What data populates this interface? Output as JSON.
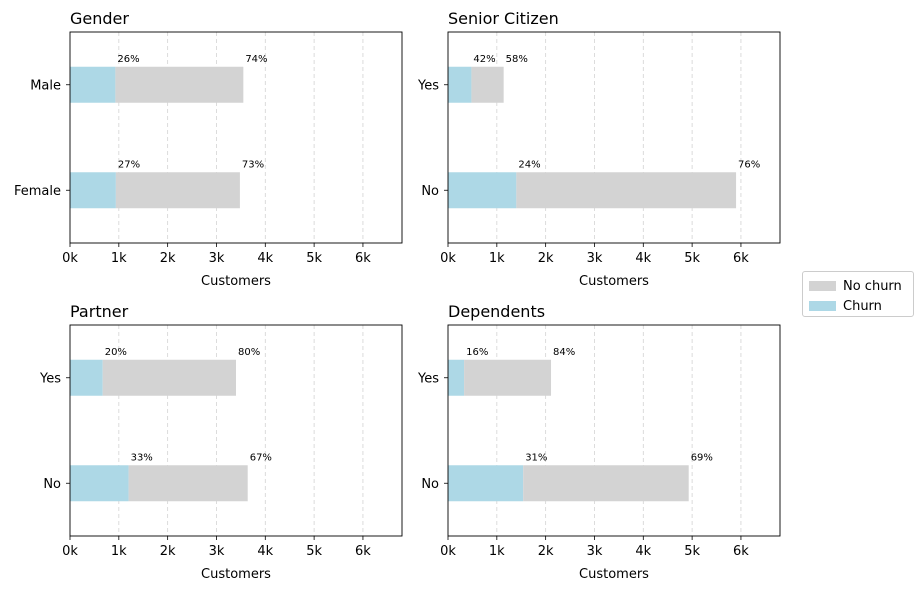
{
  "chart_data": {
    "type": "bar",
    "orientation": "horizontal",
    "stacked": true,
    "legend": {
      "placement": "right",
      "entries": [
        {
          "name": "No churn",
          "color": "#d3d3d3"
        },
        {
          "name": "Churn",
          "color": "#add8e6"
        }
      ]
    },
    "x_ticks": [
      "0k",
      "1k",
      "2k",
      "3k",
      "4k",
      "5k",
      "6k"
    ],
    "x_tick_values": [
      0,
      1000,
      2000,
      3000,
      4000,
      5000,
      6000
    ],
    "xlim": [
      0,
      6800
    ],
    "grid": {
      "x": true,
      "style": "dashed"
    },
    "panels": [
      {
        "title": "Gender",
        "xlabel": "Customers",
        "categories": [
          "Male",
          "Female"
        ],
        "series": [
          {
            "name": "Churn",
            "values": [
              930,
              940
            ]
          },
          {
            "name": "No churn",
            "values": [
              2620,
              2540
            ]
          }
        ],
        "labels_churn": [
          "26%",
          "27%"
        ],
        "labels_no_churn": [
          "74%",
          "73%"
        ]
      },
      {
        "title": "Senior Citizen",
        "xlabel": "Customers",
        "categories": [
          "Yes",
          "No"
        ],
        "series": [
          {
            "name": "Churn",
            "values": [
              480,
              1400
            ]
          },
          {
            "name": "No churn",
            "values": [
              660,
              4500
            ]
          }
        ],
        "labels_churn": [
          "42%",
          "24%"
        ],
        "labels_no_churn": [
          "58%",
          "76%"
        ]
      },
      {
        "title": "Partner",
        "xlabel": "Customers",
        "categories": [
          "Yes",
          "No"
        ],
        "series": [
          {
            "name": "Churn",
            "values": [
              670,
              1200
            ]
          },
          {
            "name": "No churn",
            "values": [
              2730,
              2440
            ]
          }
        ],
        "labels_churn": [
          "20%",
          "33%"
        ],
        "labels_no_churn": [
          "80%",
          "67%"
        ]
      },
      {
        "title": "Dependents",
        "xlabel": "Customers",
        "categories": [
          "Yes",
          "No"
        ],
        "series": [
          {
            "name": "Churn",
            "values": [
              330,
              1540
            ]
          },
          {
            "name": "No churn",
            "values": [
              1780,
              3390
            ]
          }
        ],
        "labels_churn": [
          "16%",
          "31%"
        ],
        "labels_no_churn": [
          "84%",
          "69%"
        ]
      }
    ]
  }
}
